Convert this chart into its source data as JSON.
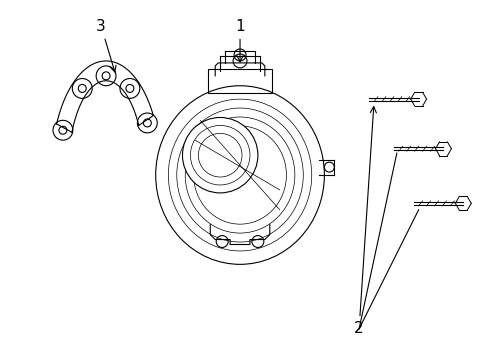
{
  "title": "",
  "background_color": "#ffffff",
  "line_color": "#000000",
  "label_1": "1",
  "label_2": "2",
  "label_3": "3",
  "fig_width": 4.89,
  "fig_height": 3.6,
  "dpi": 100
}
